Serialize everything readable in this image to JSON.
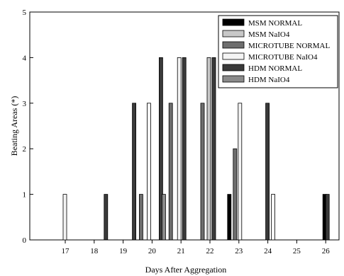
{
  "chart_data": {
    "type": "bar",
    "title": "",
    "xlabel": "Days After Aggregation",
    "ylabel": "Beating Areas (*)",
    "categories": [
      "17",
      "18",
      "19",
      "20",
      "21",
      "22",
      "23",
      "24",
      "25",
      "26"
    ],
    "ylim": [
      0,
      5
    ],
    "yticks": [
      "0",
      "1",
      "2",
      "3",
      "4",
      "5"
    ],
    "legend_position": "top-right",
    "grid": false,
    "series": [
      {
        "name": "MSM NORMAL",
        "color": "#000000",
        "values": [
          0,
          0,
          0,
          0,
          0,
          0,
          1,
          0,
          0,
          1
        ]
      },
      {
        "name": "MSM NaIO4",
        "color": "#c8c8c8",
        "values": [
          0,
          0,
          0,
          0,
          0,
          4,
          0,
          0,
          0,
          0
        ]
      },
      {
        "name": "MICROTUBE NORMAL",
        "color": "#6e6e6e",
        "values": [
          0,
          0,
          0,
          1,
          3,
          3,
          2,
          0,
          0,
          0
        ]
      },
      {
        "name": "MICROTUBE NaIO4",
        "color": "#f4f4f4",
        "values": [
          1,
          0,
          0,
          3,
          4,
          0,
          3,
          1,
          0,
          0
        ]
      },
      {
        "name": "HDM NORMAL",
        "color": "#3a3a3a",
        "values": [
          0,
          1,
          3,
          4,
          4,
          4,
          0,
          3,
          0,
          1
        ]
      },
      {
        "name": "HDM NaIO4",
        "color": "#8a8a8a",
        "values": [
          0,
          0,
          0,
          1,
          0,
          0,
          0,
          0,
          0,
          0
        ]
      }
    ]
  }
}
